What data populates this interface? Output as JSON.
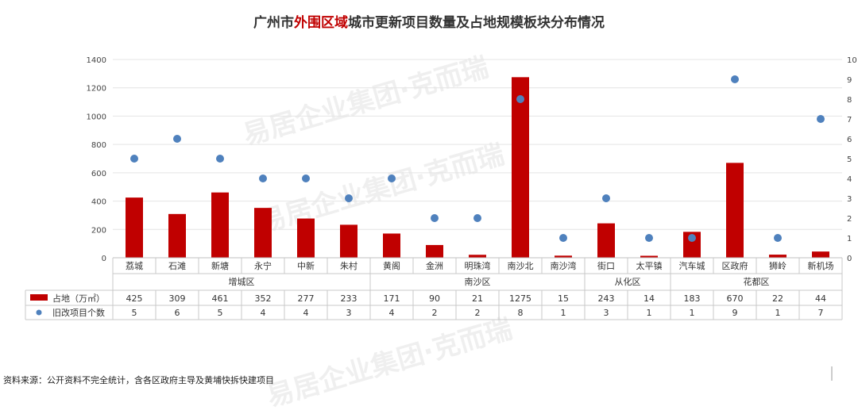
{
  "title": {
    "part1": "广州市",
    "highlight": "外围区域",
    "part2": "城市更新项目数量及占地规模板块分布情况"
  },
  "source": "资料来源：公开资料不完全统计，含各区政府主导及黄埔快拆快建项目",
  "watermark": "易居企业集团·克而瑞",
  "colors": {
    "bar": "#c00000",
    "dot": "#4f81bd"
  },
  "chart_data": {
    "type": "bar",
    "categories": [
      "荔城",
      "石滩",
      "新塘",
      "永宁",
      "中新",
      "朱村",
      "黄阁",
      "金洲",
      "明珠湾",
      "南沙北",
      "南沙湾",
      "街口",
      "太平镇",
      "汽车城",
      "区政府",
      "狮岭",
      "新机场"
    ],
    "groups": [
      {
        "name": "增城区",
        "count": 6
      },
      {
        "name": "南沙区",
        "count": 5
      },
      {
        "name": "从化区",
        "count": 2
      },
      {
        "name": "花都区",
        "count": 4
      }
    ],
    "series": [
      {
        "name": "占地（万㎡）",
        "type": "bar",
        "axis": "left",
        "values": [
          425,
          309,
          461,
          352,
          277,
          233,
          171,
          90,
          21,
          1275,
          15,
          243,
          14,
          183,
          670,
          22,
          44
        ]
      },
      {
        "name": "旧改项目个数",
        "type": "scatter",
        "axis": "right",
        "values": [
          5,
          6,
          5,
          4,
          4,
          3,
          4,
          2,
          2,
          8,
          1,
          3,
          1,
          1,
          9,
          1,
          7
        ]
      }
    ],
    "ylim": [
      0,
      1400
    ],
    "yticks": [
      0,
      200,
      400,
      600,
      800,
      1000,
      1200,
      1400
    ],
    "y2lim": [
      0,
      10
    ],
    "y2ticks": [
      0,
      1,
      2,
      3,
      4,
      5,
      6,
      7,
      8,
      9,
      10
    ],
    "grid": true,
    "legend": "data-table"
  }
}
